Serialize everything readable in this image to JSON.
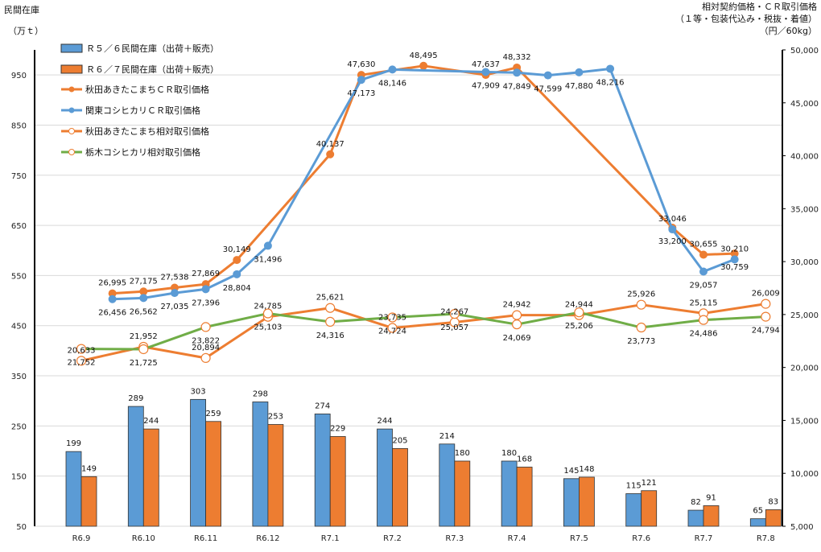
{
  "chart_data": {
    "type": "bar+line",
    "left_axis": {
      "title": "民間在庫",
      "unit": "（万ｔ）",
      "ticks": [
        50,
        150,
        250,
        350,
        450,
        550,
        650,
        750,
        850,
        950
      ],
      "range": [
        50,
        1000
      ]
    },
    "right_axis": {
      "title_lines": [
        "相対契約価格・ＣＲ取引価格",
        "（１等・包装代込み・税抜・着値）",
        "（円／60kg）"
      ],
      "ticks": [
        "5,000",
        "10,000",
        "15,000",
        "20,000",
        "25,000",
        "30,000",
        "35,000",
        "40,000",
        "45,000",
        "50,000"
      ],
      "range": [
        5000,
        50000
      ]
    },
    "categories": [
      "R6.9",
      "R6.10",
      "R6.11",
      "R6.12",
      "R7.1",
      "R7.2",
      "R7.3",
      "R7.4",
      "R7.5",
      "R7.6",
      "R7.7",
      "R7.8"
    ],
    "legend_position": "top-left",
    "bar_series": [
      {
        "name": "Ｒ５／６民間在庫（出荷＋販売）",
        "color": "#5B9BD5",
        "values": [
          199,
          289,
          303,
          298,
          274,
          244,
          214,
          180,
          145,
          115,
          82,
          65
        ]
      },
      {
        "name": "Ｒ６／７民間在庫（出荷＋販売）",
        "color": "#ED7D31",
        "values": [
          149,
          244,
          259,
          253,
          229,
          205,
          180,
          168,
          148,
          121,
          91,
          83
        ]
      }
    ],
    "line_series": [
      {
        "name": "秋田あきたこまちＣＲ取引価格",
        "color": "#ED7D31",
        "marker": "filled",
        "x": [
          0.5,
          1,
          1.5,
          2,
          2.5,
          4,
          4.5,
          5.5,
          6.5,
          7,
          9.5,
          10,
          10.5
        ],
        "values": [
          26995,
          27175,
          27538,
          27869,
          30149,
          40137,
          47630,
          48495,
          47637,
          48332,
          33200,
          30655,
          30759
        ]
      },
      {
        "name": "関東コシヒカリＣＲ取引価格",
        "color": "#5B9BD5",
        "marker": "filled",
        "x": [
          0.5,
          1,
          1.5,
          2,
          2.5,
          3,
          4.5,
          5,
          6.5,
          7,
          7.5,
          8,
          8.5,
          9.5,
          10,
          10.5
        ],
        "values": [
          26456,
          26562,
          27035,
          27396,
          28804,
          31496,
          47173,
          48146,
          47909,
          47849,
          47599,
          47880,
          48216,
          33046,
          29057,
          30210
        ]
      },
      {
        "name": "秋田あきたこまち相対取引価格",
        "color": "#ED7D31",
        "marker": "hollow",
        "x": [
          0,
          1,
          2,
          3,
          4,
          5,
          6,
          7,
          8,
          9,
          10,
          11
        ],
        "values": [
          20633,
          21952,
          20894,
          24785,
          25621,
          23735,
          24267,
          24942,
          24944,
          25926,
          25115,
          26009
        ]
      },
      {
        "name": "栃木コシヒカリ相対取引価格",
        "color": "#70AD47",
        "marker": "hollow",
        "x": [
          0,
          1,
          2,
          3,
          4,
          5,
          6,
          7,
          8,
          9,
          10,
          11
        ],
        "values": [
          21752,
          21725,
          23822,
          25103,
          24316,
          24724,
          25057,
          24069,
          25206,
          23773,
          24486,
          24794
        ]
      }
    ]
  }
}
